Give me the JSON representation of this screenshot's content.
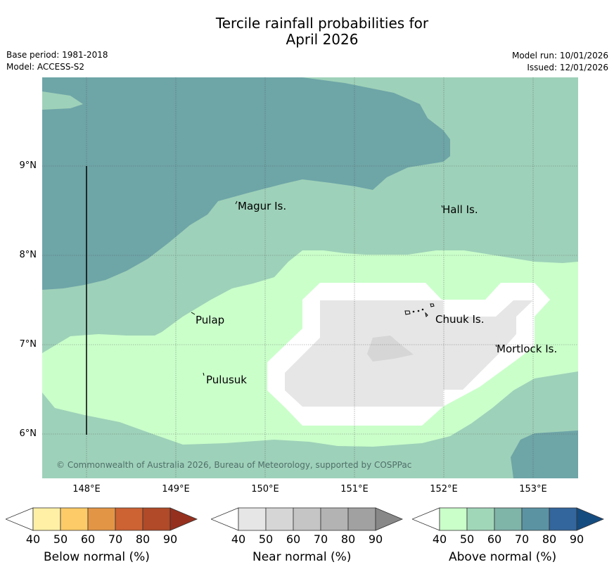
{
  "title": {
    "line1": "Tercile rainfall probabilities for",
    "line2": "April 2026"
  },
  "meta": {
    "base_period": "Base period: 1981-2018",
    "model": "Model: ACCESS-S2",
    "model_run": "Model run: 10/01/2026",
    "issued": "Issued: 12/01/2026"
  },
  "map": {
    "lat_labels": [
      "9°N",
      "8°N",
      "7°N",
      "6°N"
    ],
    "lon_labels": [
      "148°E",
      "149°E",
      "150°E",
      "151°E",
      "152°E",
      "153°E"
    ],
    "places": {
      "magur": "Magur Is.",
      "hall": "Hall Is.",
      "pulap": "Pulap",
      "chuuk": "Chuuk Is.",
      "mortlock": "Mortlock Is.",
      "pulusuk": "Pulusuk"
    },
    "copyright": "© Commonwealth of Australia 2026, Bureau of Meteorology, supported by COSPPac"
  },
  "colorbars": {
    "ticks": [
      "40",
      "50",
      "60",
      "70",
      "80",
      "90"
    ],
    "below": {
      "label": "Below normal (%)",
      "colors": [
        "#fff0a6",
        "#fdcb67",
        "#e39546",
        "#cd6233",
        "#b04a28",
        "#96301e"
      ]
    },
    "near": {
      "label": "Near normal (%)",
      "colors": [
        "#e6e6e6",
        "#d6d6d6",
        "#c5c5c5",
        "#b3b3b3",
        "#a1a1a1",
        "#888888"
      ]
    },
    "above": {
      "label": "Above normal (%)",
      "colors": [
        "#caffca",
        "#a1d7b9",
        "#7fb4a9",
        "#5b93a3",
        "#33669c",
        "#154c80"
      ]
    }
  },
  "colors": {
    "white_band": "#ffffff",
    "near_40": "#e6e6e6",
    "near_50": "#d6d6d6",
    "above_40": "#caffca",
    "above_50": "#9ed1b9",
    "above_60": "#6ea5a7"
  }
}
